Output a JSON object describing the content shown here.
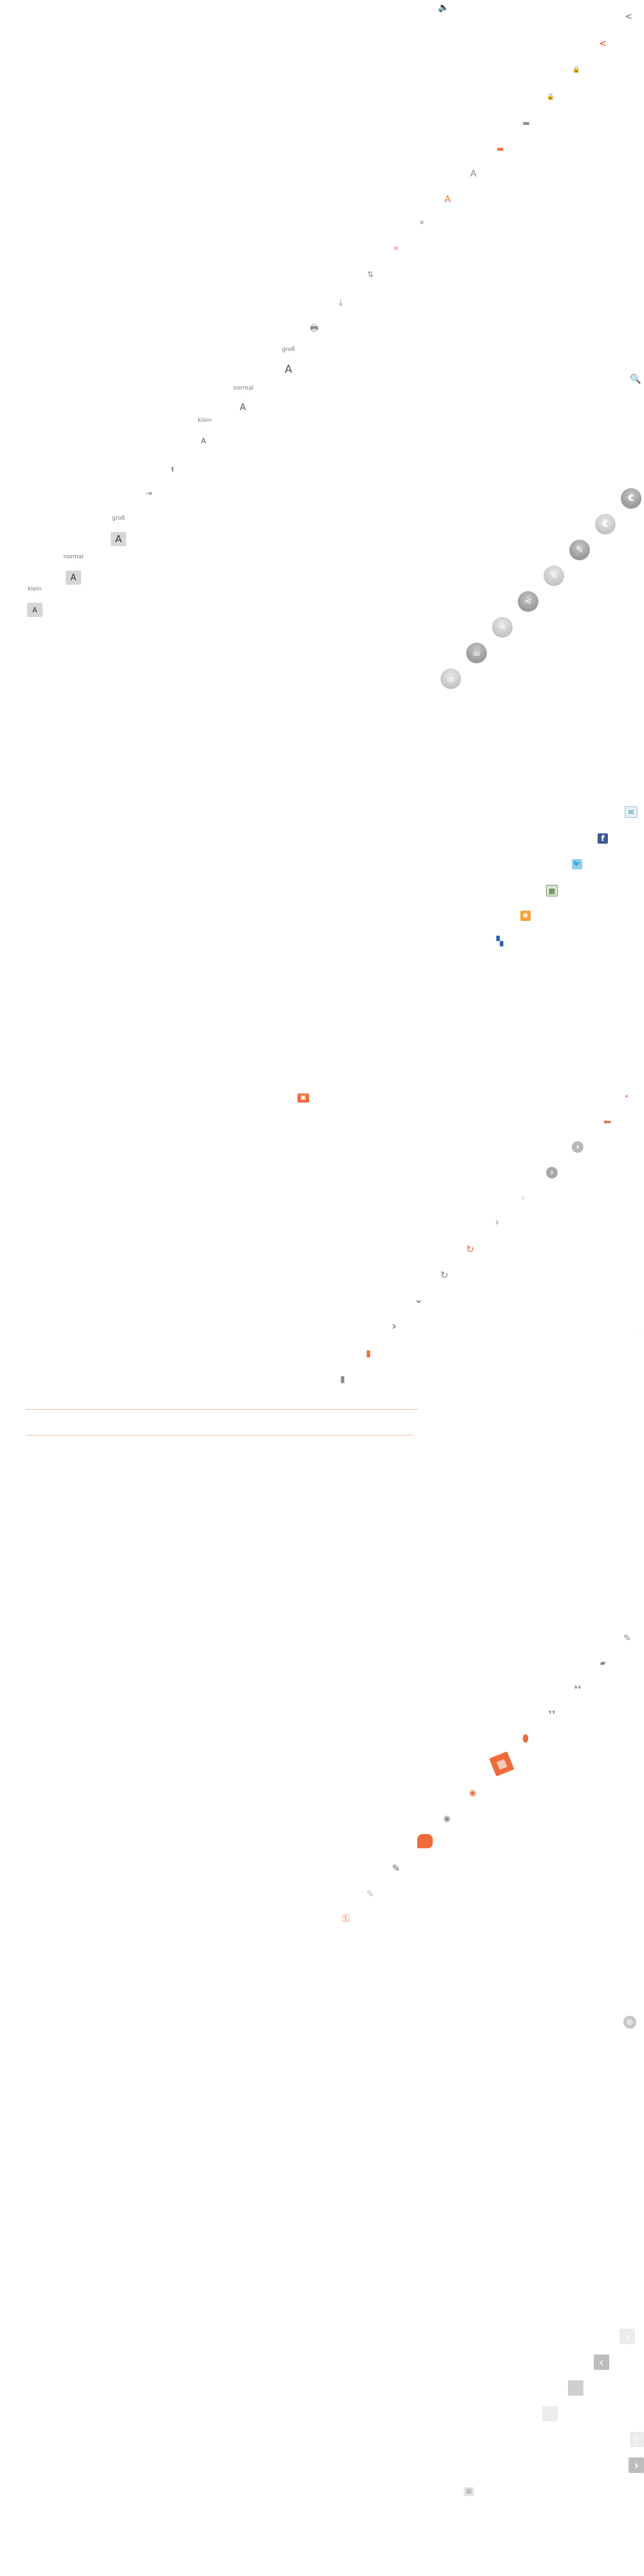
{
  "font_sizes": {
    "klein": "klein",
    "normal": "normal",
    "gross": "groß",
    "klein2": "klein",
    "normal2": "normal",
    "gross2": "groß",
    "letter": "A"
  },
  "colors": {
    "accent": "#f06a3a",
    "icon_grey": "#8a8a8a",
    "light_grey": "#d8d8d8",
    "divider": "#f4b8a4"
  },
  "icons": {
    "top": [
      "speaker-icon",
      "share-icon",
      "share-orange-icon",
      "lock-icon",
      "lock-orange-icon",
      "print-icon",
      "print-orange-icon",
      "font-icon",
      "font-orange-icon",
      "pin-icon",
      "pin-orange-icon",
      "sort-icon",
      "download-icon",
      "printer-icon"
    ],
    "social_circles": [
      "euro-icon",
      "euro-light-icon",
      "edit-icon",
      "edit-light-icon",
      "share-circle-icon",
      "share-circle-light-icon",
      "link-icon",
      "link-light-icon"
    ],
    "social_squares": [
      "mail-icon",
      "facebook-icon",
      "twitter-icon",
      "bookmark-icon",
      "rss-icon",
      "delicious-icon"
    ],
    "misc": [
      "contact-icon",
      "arrow-left-orange-icon",
      "chevron-circle-icon",
      "chevron-circle-dark-icon",
      "chevron-light-icon",
      "chevron-icon",
      "refresh-orange-icon",
      "refresh-icon",
      "chevron-down-icon",
      "chevron-right-icon",
      "calendar-orange-icon",
      "calendar-icon"
    ],
    "comments": [
      "pencil-icon",
      "comment-icon",
      "quote-open-icon",
      "quote-close-icon",
      "mouse-icon",
      "book-orange-icon",
      "rss-orange-icon",
      "rss-grey-icon",
      "comment-orange-icon",
      "pencil-dark-icon",
      "pencil-light-icon",
      "key-icon",
      "search-icon",
      "close-circle-icon"
    ],
    "pagination": [
      "prev-light-icon",
      "prev-icon",
      "square-grey",
      "square-light",
      "next-light-icon",
      "next-icon",
      "grid-icon"
    ]
  },
  "glyphs": {
    "speaker": "🔈",
    "share": "<",
    "lock": "🔒",
    "print": "▬",
    "font": "A",
    "pin": "✕",
    "sort": "⇅",
    "download": "⤓",
    "printer": "🖶",
    "cursor": "⬆",
    "enter": "⇥",
    "search": "🔍",
    "euro": "€",
    "edit": "✎",
    "share_c": "⋖",
    "link": "∞",
    "mail": "✉",
    "fb": "f",
    "bird": "🐦",
    "book": "▦",
    "rss": "◉",
    "del": "▚",
    "contact": "▣",
    "arrow_left": "⬅",
    "chev_r": "›",
    "chev_d": "⌄",
    "refresh": "↻",
    "calendar": "▮",
    "plus": "✦",
    "pencil": "✎",
    "comment": "▰",
    "quote_open": "❛❛",
    "quote_close": "❜❜",
    "mouse": "⬮",
    "key": "⚿",
    "close": "⊗",
    "prev": "‹",
    "next": "›",
    "grid": "▦"
  }
}
